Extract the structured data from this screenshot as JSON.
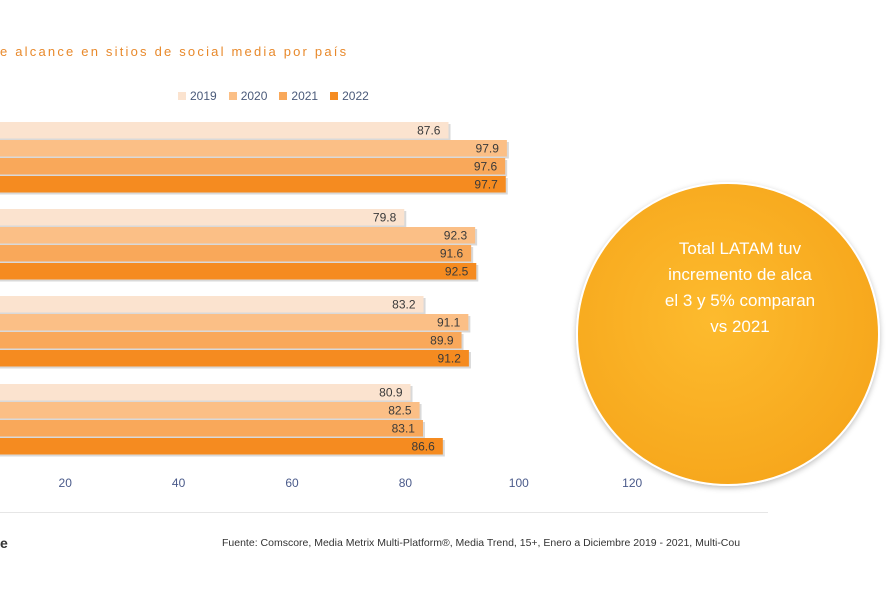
{
  "title": "e alcance en sitios de social media por país",
  "legend": [
    {
      "label": "2019",
      "color": "#fbe3cf"
    },
    {
      "label": "2020",
      "color": "#fbbf86"
    },
    {
      "label": "2021",
      "color": "#f9a85a"
    },
    {
      "label": "2022",
      "color": "#f58b20"
    }
  ],
  "chart_data": {
    "type": "bar",
    "orientation": "horizontal",
    "series": [
      {
        "name": "2019",
        "values": [
          87.6,
          79.8,
          83.2,
          80.9
        ]
      },
      {
        "name": "2020",
        "values": [
          97.9,
          92.3,
          91.1,
          82.5
        ]
      },
      {
        "name": "2021",
        "values": [
          97.6,
          91.6,
          89.9,
          83.1
        ]
      },
      {
        "name": "2022",
        "values": [
          97.7,
          92.5,
          91.2,
          86.6
        ]
      }
    ],
    "x_ticks": [
      20,
      40,
      60,
      80,
      100,
      120
    ],
    "grid": false,
    "legend_position": "top"
  },
  "callout": {
    "text": "Total LATAM tuv\nincremento de alca\nel 3 y 5% comparan\nvs 2021"
  },
  "footer": {
    "logo": "e",
    "source": "Fuente: Comscore, Media Metrix Multi-Platform®, Media Trend, 15+, Enero a Diciembre 2019 - 2021, Multi-Cou"
  }
}
